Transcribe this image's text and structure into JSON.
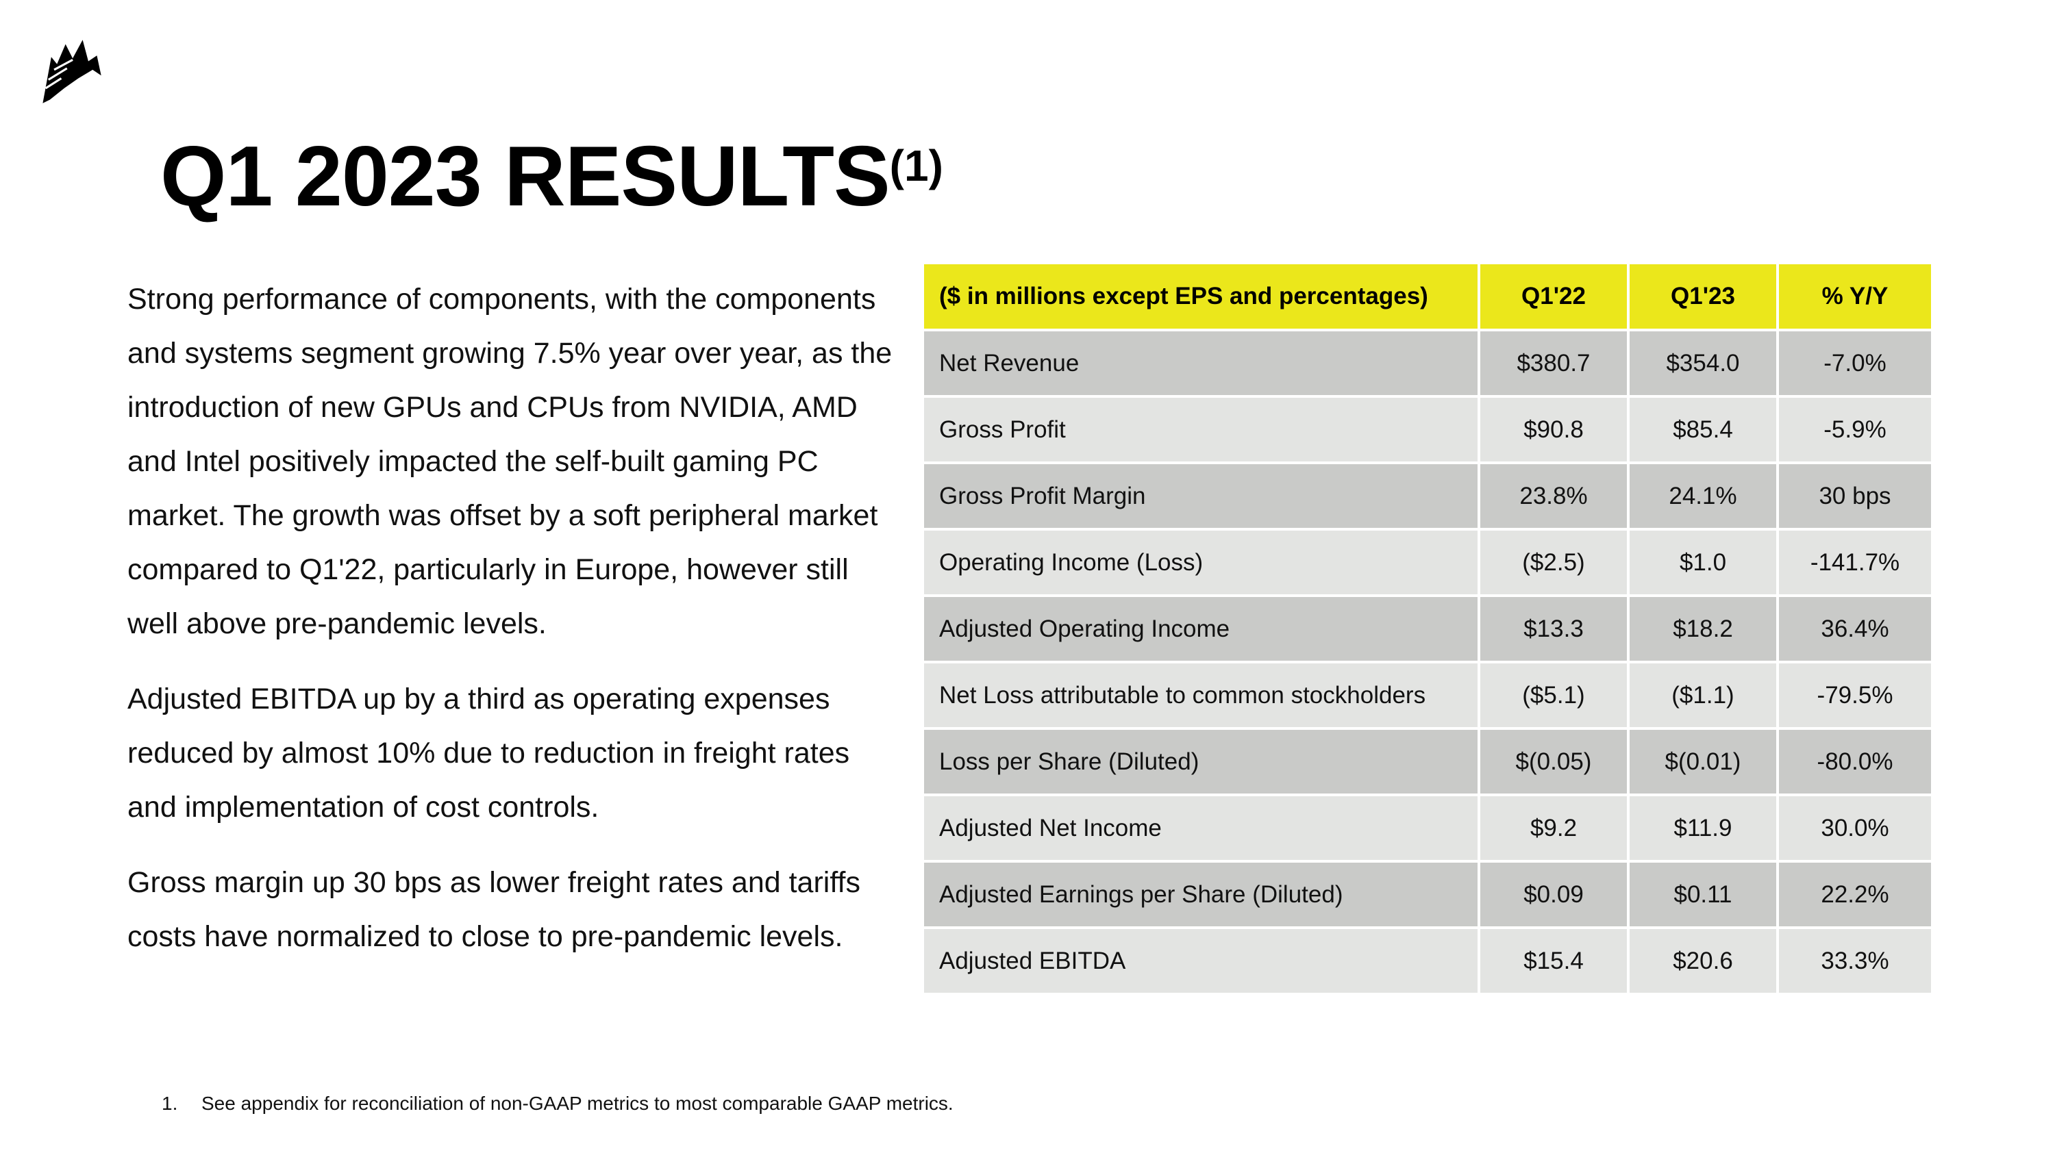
{
  "slide": {
    "title": "Q1 2023 RESULTS",
    "title_superscript": "(1)",
    "paragraphs": [
      "Strong performance of components, with the components and systems segment growing 7.5% year over year, as the introduction of new GPUs and CPUs from NVIDIA, AMD and Intel positively impacted the self-built gaming PC market.  The growth was offset by a soft peripheral market compared to Q1'22, particularly in Europe, however still well above pre-pandemic levels.",
      "Adjusted EBITDA up by a third as operating expenses reduced by almost 10% due to reduction in freight rates and implementation of cost controls.",
      "Gross margin up 30 bps as lower freight rates and tariffs costs have normalized to close to pre-pandemic levels."
    ],
    "logo_icon": "sail-ship-logo-icon",
    "footnote": {
      "number": "1.",
      "text": "See appendix for reconciliation of non-GAAP metrics to most comparable GAAP metrics."
    }
  },
  "table": {
    "header_color": "#EBE71B",
    "dark_row_color": "#C9CAC8",
    "light_row_color": "#E3E4E2",
    "headers": [
      "($ in millions except EPS and percentages)",
      "Q1'22",
      "Q1'23",
      "% Y/Y"
    ],
    "rows": [
      [
        "Net Revenue",
        "$380.7",
        "$354.0",
        "-7.0%"
      ],
      [
        "Gross Profit",
        "$90.8",
        "$85.4",
        "-5.9%"
      ],
      [
        "Gross Profit Margin",
        "23.8%",
        "24.1%",
        "30 bps"
      ],
      [
        "Operating Income (Loss)",
        "($2.5)",
        "$1.0",
        "-141.7%"
      ],
      [
        "Adjusted Operating Income",
        "$13.3",
        "$18.2",
        "36.4%"
      ],
      [
        "Net Loss attributable to common stockholders",
        "($5.1)",
        "($1.1)",
        "-79.5%"
      ],
      [
        "Loss per Share (Diluted)",
        "$(0.05)",
        "$(0.01)",
        "-80.0%"
      ],
      [
        "Adjusted Net Income",
        "$9.2",
        "$11.9",
        "30.0%"
      ],
      [
        "Adjusted Earnings per Share (Diluted)",
        "$0.09",
        "$0.11",
        "22.2%"
      ],
      [
        "Adjusted EBITDA",
        "$15.4",
        "$20.6",
        "33.3%"
      ]
    ]
  }
}
